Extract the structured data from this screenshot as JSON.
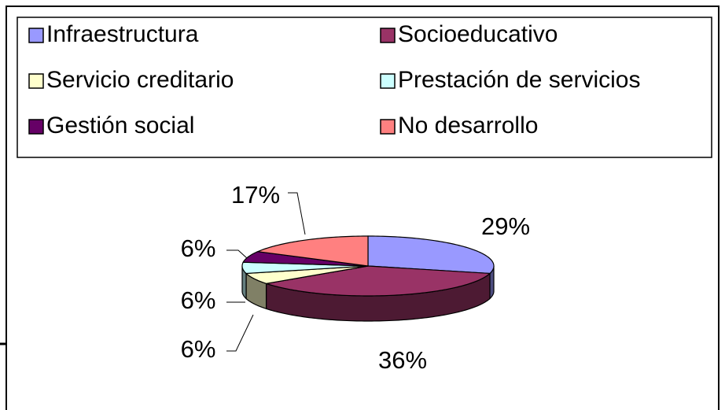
{
  "chart_data": {
    "type": "pie",
    "categories": [
      "Infraestructura",
      "Socioeducativo",
      "Servicio creditario",
      "Prestación de servicios",
      "Gestión social",
      "No desarrollo"
    ],
    "values": [
      29,
      36,
      6,
      6,
      6,
      17
    ],
    "value_labels": [
      "29%",
      "36%",
      "6%",
      "6%",
      "6%",
      "17%"
    ],
    "colors": [
      "#9999ff",
      "#993366",
      "#ffffcc",
      "#ccffff",
      "#660066",
      "#ff8080"
    ],
    "legend": "top"
  }
}
